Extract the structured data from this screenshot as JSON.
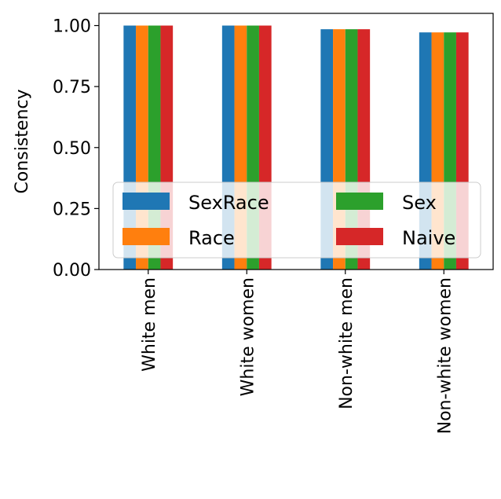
{
  "chart_data": {
    "type": "bar",
    "title": "",
    "xlabel": "",
    "ylabel": "Consistency",
    "categories": [
      "White men",
      "White women",
      "Non-white men",
      "Non-white women"
    ],
    "series": [
      {
        "name": "SexRace",
        "color": "#1f77b4",
        "values": [
          1.0,
          1.0,
          0.985,
          0.972
        ]
      },
      {
        "name": "Race",
        "color": "#ff7f0e",
        "values": [
          1.0,
          1.0,
          0.985,
          0.972
        ]
      },
      {
        "name": "Sex",
        "color": "#2ca02c",
        "values": [
          1.0,
          1.0,
          0.985,
          0.972
        ]
      },
      {
        "name": "Naive",
        "color": "#d62728",
        "values": [
          1.0,
          1.0,
          0.985,
          0.972
        ]
      }
    ],
    "ylim": [
      0,
      1.05
    ],
    "yticks": [
      "0.00",
      "0.25",
      "0.50",
      "0.75",
      "1.00"
    ],
    "grid": false,
    "legend": {
      "placement": "lower-center",
      "columns": 2,
      "order": [
        "SexRace",
        "Race",
        "Sex",
        "Naive"
      ]
    }
  }
}
